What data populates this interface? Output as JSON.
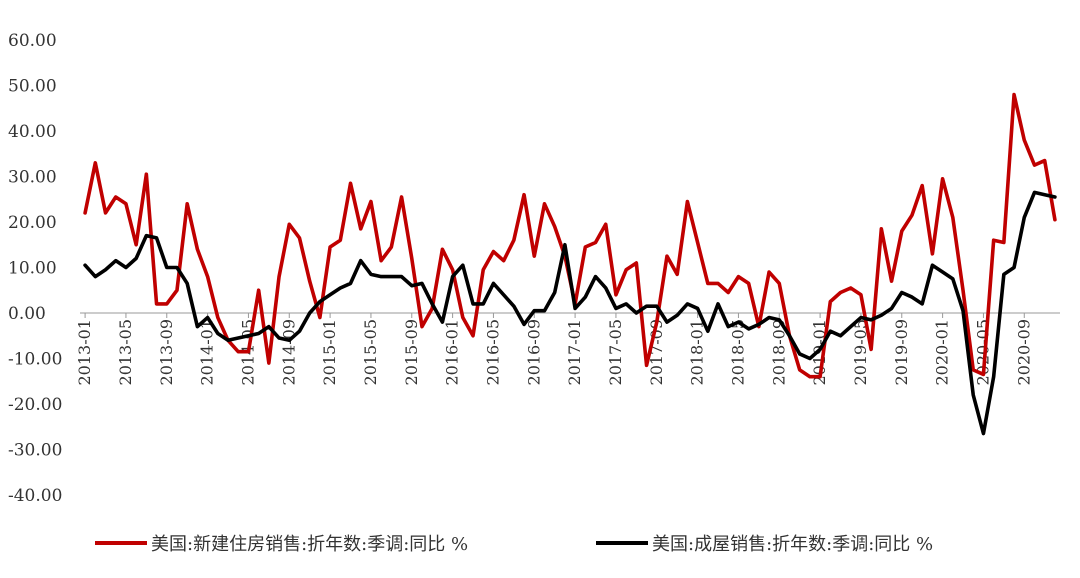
{
  "chart_data": {
    "type": "line",
    "title": "",
    "xlabel": "",
    "ylabel": "",
    "ylim": [
      -40,
      60
    ],
    "y_ticks": [
      "60.00",
      "50.00",
      "40.00",
      "30.00",
      "20.00",
      "10.00",
      "0.00",
      "-10.00",
      "-20.00",
      "-30.00",
      "-40.00"
    ],
    "y_tick_values": [
      60,
      50,
      40,
      30,
      20,
      10,
      0,
      -10,
      -20,
      -30,
      -40
    ],
    "x_start": "2013-01",
    "x_tick_labels": [
      "2013-01",
      "2013-05",
      "2013-09",
      "2014-01",
      "2014-05",
      "2014-09",
      "2015-01",
      "2015-05",
      "2015-09",
      "2016-01",
      "2016-05",
      "2016-09",
      "2017-01",
      "2017-05",
      "2017-09",
      "2018-01",
      "2018-05",
      "2018-09",
      "2019-01",
      "2019-05",
      "2019-09",
      "2020-01",
      "2020-05",
      "2020-09"
    ],
    "grid": false,
    "legend_position": "bottom",
    "series": [
      {
        "name": "美国:新建住房销售:折年数:季调:同比 %",
        "color": "#C00000",
        "values": [
          22,
          33,
          22,
          25.5,
          24,
          15,
          30.5,
          2,
          2,
          5,
          24,
          14,
          8,
          -1,
          -6,
          -8.5,
          -8.5,
          5,
          -11,
          8,
          19.5,
          16.5,
          7,
          -1,
          14.5,
          16,
          28.5,
          18.5,
          24.5,
          11.5,
          14.5,
          25.5,
          12,
          -3,
          1,
          14,
          9.5,
          -1,
          -5,
          9.5,
          13.5,
          11.5,
          16,
          26,
          12.5,
          24,
          19,
          12.5,
          2,
          14.5,
          15.5,
          19.5,
          4,
          9.5,
          11,
          -11.5,
          -2,
          12.5,
          8.5,
          24.5,
          15.5,
          6.5,
          6.5,
          4.5,
          8,
          6.5,
          -3,
          9,
          6.5,
          -5,
          -12.5,
          -14,
          -14,
          2.5,
          4.5,
          5.5,
          4,
          -8,
          18.5,
          7,
          18,
          21.5,
          28,
          13,
          29.5,
          21,
          5,
          -12.5,
          -13.5,
          16,
          15.5,
          48,
          38,
          32.5,
          33.5,
          20.5
        ]
      },
      {
        "name": "美国:成屋销售:折年数:季调:同比 %",
        "color": "#000000",
        "values": [
          10.5,
          8,
          9.5,
          11.5,
          10,
          12,
          17,
          16.5,
          10,
          10,
          6.5,
          -3,
          -1,
          -4.5,
          -6,
          -5.5,
          -5,
          -4.5,
          -3,
          -5.5,
          -6,
          -4,
          0,
          2.5,
          4,
          5.5,
          6.5,
          11.5,
          8.5,
          8,
          8,
          8,
          6,
          6.5,
          2,
          -2,
          8,
          10.5,
          2,
          2,
          6.5,
          4,
          1.5,
          -2.5,
          0.5,
          0.5,
          4.5,
          15,
          1,
          3.5,
          8,
          5.5,
          1,
          2,
          0,
          1.5,
          1.5,
          -2,
          -0.5,
          2,
          1,
          -4,
          2,
          -3,
          -2,
          -3.5,
          -2.5,
          -1,
          -1.5,
          -5,
          -9,
          -10,
          -8,
          -4,
          -5,
          -3,
          -1,
          -1.5,
          -0.5,
          1,
          4.5,
          3.5,
          2,
          10.5,
          9,
          7.5,
          0.5,
          -18,
          -26.5,
          -14,
          8.5,
          10,
          21,
          26.5,
          26,
          25.5
        ]
      }
    ]
  }
}
